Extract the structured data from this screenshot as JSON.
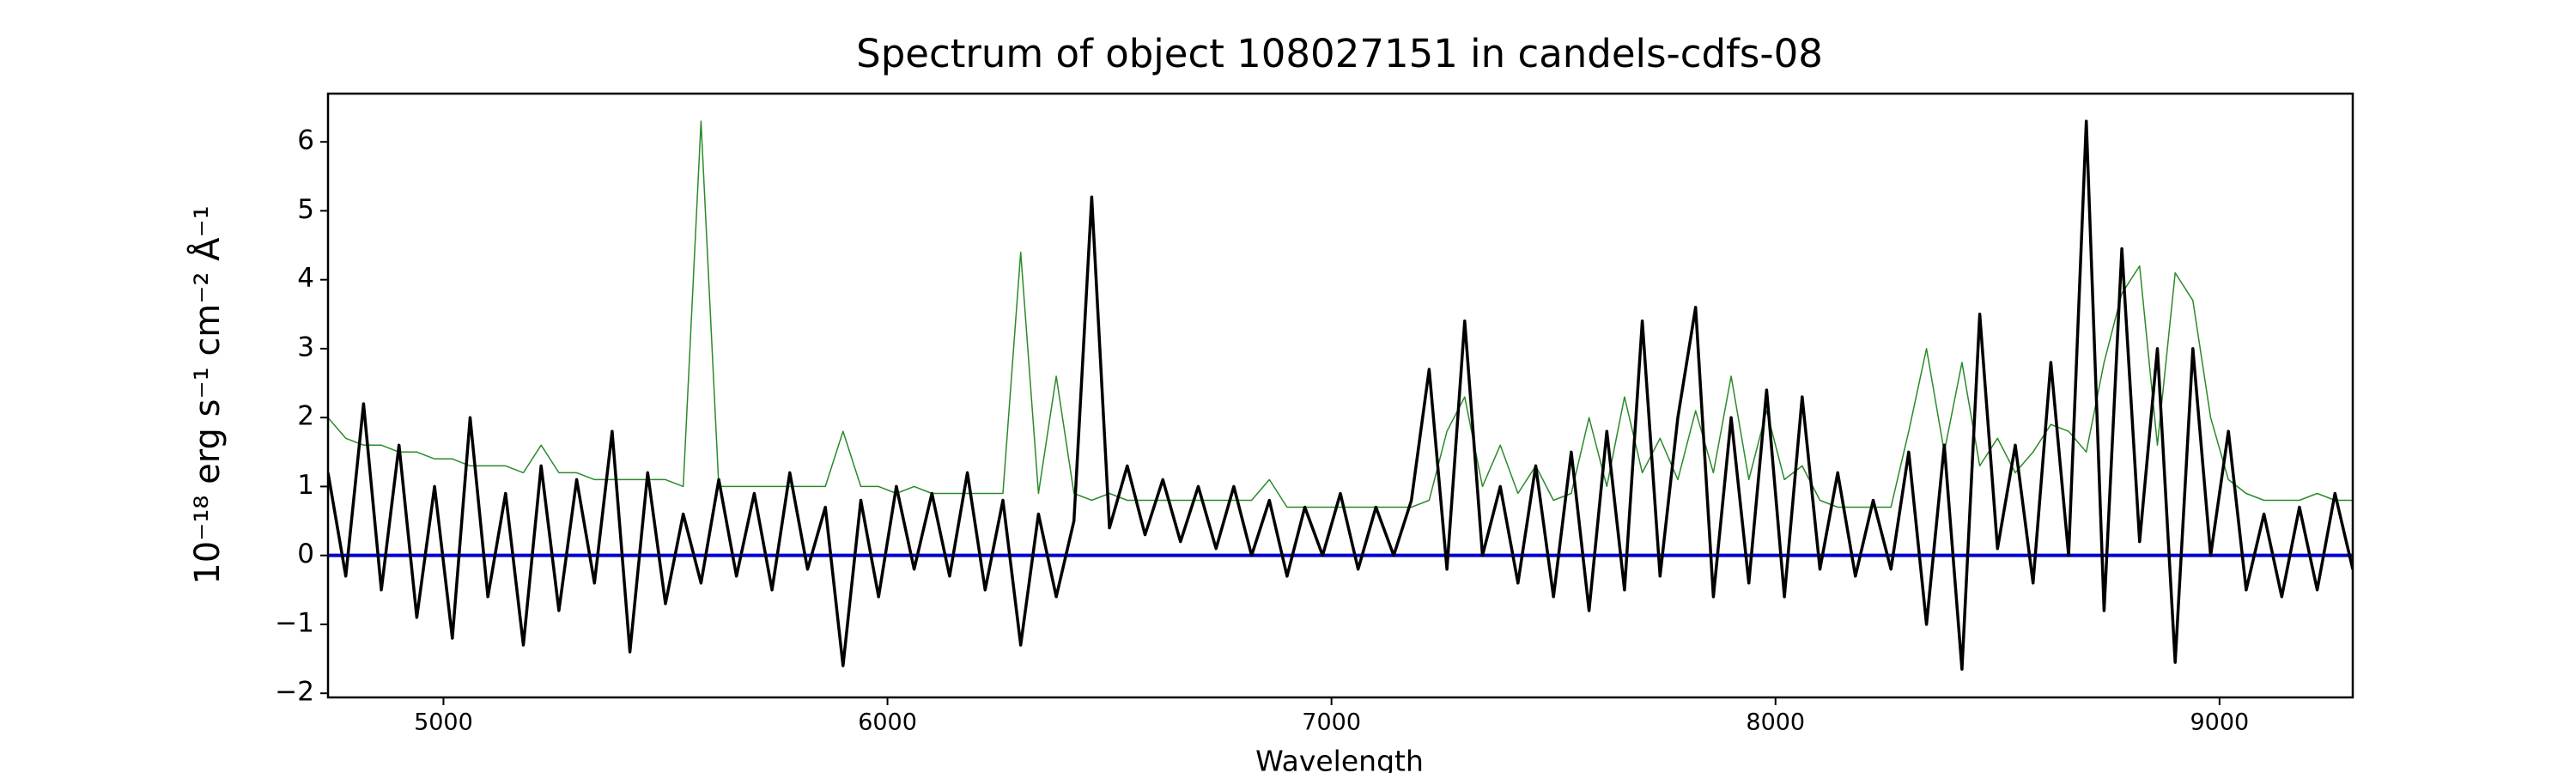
{
  "chart_data": {
    "type": "line",
    "title": "Spectrum of object 108027151 in candels-cdfs-08",
    "xlabel": "Wavelength",
    "ylabel": "10⁻¹⁸ erg s⁻¹ cm⁻² Å⁻¹",
    "xlim": [
      4740,
      9300
    ],
    "ylim": [
      -2.06,
      6.7
    ],
    "xticks": [
      5000,
      6000,
      7000,
      8000,
      9000
    ],
    "yticks": [
      {
        "value": -2,
        "label": "−2"
      },
      {
        "value": -1,
        "label": "−1"
      },
      0,
      1,
      2,
      3,
      4,
      5,
      6
    ],
    "hline": 0,
    "hline_color": "#0000cc",
    "x": [
      4740,
      4780,
      4820,
      4860,
      4900,
      4940,
      4980,
      5020,
      5060,
      5100,
      5140,
      5180,
      5220,
      5260,
      5300,
      5340,
      5380,
      5420,
      5460,
      5500,
      5540,
      5580,
      5620,
      5660,
      5700,
      5740,
      5780,
      5820,
      5860,
      5900,
      5940,
      5980,
      6020,
      6060,
      6100,
      6140,
      6180,
      6220,
      6260,
      6300,
      6340,
      6380,
      6420,
      6460,
      6500,
      6540,
      6580,
      6620,
      6660,
      6700,
      6740,
      6780,
      6820,
      6860,
      6900,
      6940,
      6980,
      7020,
      7060,
      7100,
      7140,
      7180,
      7220,
      7260,
      7300,
      7340,
      7380,
      7420,
      7460,
      7500,
      7540,
      7580,
      7620,
      7660,
      7700,
      7740,
      7780,
      7820,
      7860,
      7900,
      7940,
      7980,
      8020,
      8060,
      8100,
      8140,
      8180,
      8220,
      8260,
      8300,
      8340,
      8380,
      8420,
      8460,
      8500,
      8540,
      8580,
      8620,
      8660,
      8700,
      8740,
      8780,
      8820,
      8860,
      8900,
      8940,
      8980,
      9020,
      9060,
      9100,
      9140,
      9180,
      9220,
      9260,
      9300
    ],
    "series": [
      {
        "color": "#2a8a2a",
        "width": 1.5,
        "values": [
          2.0,
          1.7,
          1.6,
          1.6,
          1.5,
          1.5,
          1.4,
          1.4,
          1.3,
          1.3,
          1.3,
          1.2,
          1.6,
          1.2,
          1.2,
          1.1,
          1.1,
          1.1,
          1.1,
          1.1,
          1.0,
          6.3,
          1.0,
          1.0,
          1.0,
          1.0,
          1.0,
          1.0,
          1.0,
          1.8,
          1.0,
          1.0,
          0.9,
          1.0,
          0.9,
          0.9,
          0.9,
          0.9,
          0.9,
          4.4,
          0.9,
          2.6,
          0.9,
          0.8,
          0.9,
          0.8,
          0.8,
          0.8,
          0.8,
          0.8,
          0.8,
          0.8,
          0.8,
          1.1,
          0.7,
          0.7,
          0.7,
          0.7,
          0.7,
          0.7,
          0.7,
          0.7,
          0.8,
          1.8,
          2.3,
          1.0,
          1.6,
          0.9,
          1.3,
          0.8,
          0.9,
          2.0,
          1.0,
          2.3,
          1.2,
          1.7,
          1.1,
          2.1,
          1.2,
          2.6,
          1.1,
          2.1,
          1.1,
          1.3,
          0.8,
          0.7,
          0.7,
          0.7,
          0.7,
          1.8,
          3.0,
          1.5,
          2.8,
          1.3,
          1.7,
          1.2,
          1.5,
          1.9,
          1.8,
          1.5,
          2.8,
          3.8,
          4.2,
          1.6,
          4.1,
          3.7,
          2.0,
          1.1,
          0.9,
          0.8,
          0.8,
          0.8,
          0.9,
          0.8,
          0.8
        ]
      },
      {
        "color": "#000000",
        "width": 3.5,
        "values": [
          1.2,
          -0.3,
          2.2,
          -0.5,
          1.6,
          -0.9,
          1.0,
          -1.2,
          2.0,
          -0.6,
          0.9,
          -1.3,
          1.3,
          -0.8,
          1.1,
          -0.4,
          1.8,
          -1.4,
          1.2,
          -0.7,
          0.6,
          -0.4,
          1.1,
          -0.3,
          0.9,
          -0.5,
          1.2,
          -0.2,
          0.7,
          -1.6,
          0.8,
          -0.6,
          1.0,
          -0.2,
          0.9,
          -0.3,
          1.2,
          -0.5,
          0.8,
          -1.3,
          0.6,
          -0.6,
          0.5,
          5.2,
          0.4,
          1.3,
          0.3,
          1.1,
          0.2,
          1.0,
          0.1,
          1.0,
          0.0,
          0.8,
          -0.3,
          0.7,
          0.0,
          0.9,
          -0.2,
          0.7,
          0.0,
          0.8,
          2.7,
          -0.2,
          3.4,
          0.0,
          1.0,
          -0.4,
          1.3,
          -0.6,
          1.5,
          -0.8,
          1.8,
          -0.5,
          3.4,
          -0.3,
          2.0,
          3.6,
          -0.6,
          2.0,
          -0.4,
          2.4,
          -0.6,
          2.3,
          -0.2,
          1.2,
          -0.3,
          0.8,
          -0.2,
          1.5,
          -1.0,
          1.6,
          -1.65,
          3.5,
          0.1,
          1.6,
          -0.4,
          2.8,
          0.0,
          6.3,
          -0.8,
          4.45,
          0.2,
          3.0,
          -1.55,
          3.0,
          0.0,
          1.8,
          -0.5,
          0.6,
          -0.6,
          0.7,
          -0.5,
          0.9,
          -0.2
        ]
      }
    ]
  }
}
